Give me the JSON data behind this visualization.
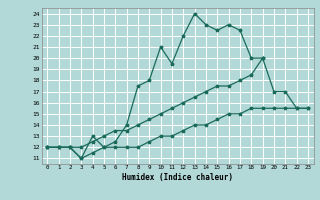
{
  "bg_color": "#b2d8d8",
  "grid_color": "#ffffff",
  "line_color": "#1a6b5a",
  "xlabel": "Humidex (Indice chaleur)",
  "xlim": [
    -0.5,
    23.5
  ],
  "ylim": [
    10.5,
    24.5
  ],
  "yticks": [
    11,
    12,
    13,
    14,
    15,
    16,
    17,
    18,
    19,
    20,
    21,
    22,
    23,
    24
  ],
  "xticks": [
    0,
    1,
    2,
    3,
    4,
    5,
    6,
    7,
    8,
    9,
    10,
    11,
    12,
    13,
    14,
    15,
    16,
    17,
    18,
    19,
    20,
    21,
    22,
    23
  ],
  "line1_x": [
    0,
    1,
    2,
    3,
    4,
    5,
    6,
    7,
    8,
    9,
    10,
    11,
    12,
    13,
    14,
    15,
    16,
    17,
    18,
    19
  ],
  "line1_y": [
    12,
    12,
    12,
    11,
    13,
    12,
    12.5,
    14,
    17.5,
    18,
    21,
    19.5,
    22,
    24,
    23,
    22.5,
    23,
    22.5,
    20,
    20
  ],
  "line2_x": [
    0,
    1,
    2,
    3,
    4,
    5,
    6,
    7,
    8,
    9,
    10,
    11,
    12,
    13,
    14,
    15,
    16,
    17,
    18,
    19,
    20,
    21,
    22,
    23
  ],
  "line2_y": [
    12,
    12,
    12,
    12,
    12.5,
    13,
    13.5,
    13.5,
    14,
    14.5,
    15,
    15.5,
    16,
    16.5,
    17,
    17.5,
    17.5,
    18,
    18.5,
    20,
    17,
    17,
    15.5,
    15.5
  ],
  "line3_x": [
    0,
    1,
    2,
    3,
    4,
    5,
    6,
    7,
    8,
    9,
    10,
    11,
    12,
    13,
    14,
    15,
    16,
    17,
    18,
    19,
    20,
    21,
    22,
    23
  ],
  "line3_y": [
    12,
    12,
    12,
    11,
    11.5,
    12,
    12,
    12,
    12,
    12.5,
    13,
    13,
    13.5,
    14,
    14,
    14.5,
    15,
    15,
    15.5,
    15.5,
    15.5,
    15.5,
    15.5,
    15.5
  ]
}
